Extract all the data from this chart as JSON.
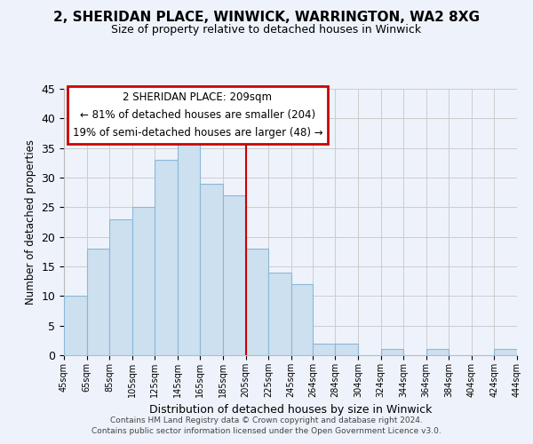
{
  "title": "2, SHERIDAN PLACE, WINWICK, WARRINGTON, WA2 8XG",
  "subtitle": "Size of property relative to detached houses in Winwick",
  "xlabel": "Distribution of detached houses by size in Winwick",
  "ylabel": "Number of detached properties",
  "bar_color": "#cce0f0",
  "bar_edge_color": "#8ab8d8",
  "grid_color": "#cccccc",
  "vline_color": "#cc0000",
  "vline_x": 205,
  "bin_edges": [
    45,
    65,
    85,
    105,
    125,
    145,
    165,
    185,
    205,
    225,
    245,
    264,
    284,
    304,
    324,
    344,
    364,
    384,
    404,
    424,
    444
  ],
  "bin_heights": [
    10,
    18,
    23,
    25,
    33,
    37,
    29,
    27,
    18,
    14,
    12,
    2,
    2,
    0,
    1,
    0,
    1,
    0,
    0,
    1
  ],
  "ylim": [
    0,
    45
  ],
  "yticks": [
    0,
    5,
    10,
    15,
    20,
    25,
    30,
    35,
    40,
    45
  ],
  "annotation_title": "2 SHERIDAN PLACE: 209sqm",
  "annotation_line1": "← 81% of detached houses are smaller (204)",
  "annotation_line2": "19% of semi-detached houses are larger (48) →",
  "annotation_box_color": "#ffffff",
  "annotation_box_edge_color": "#cc0000",
  "footnote1": "Contains HM Land Registry data © Crown copyright and database right 2024.",
  "footnote2": "Contains public sector information licensed under the Open Government Licence v3.0.",
  "bg_color": "#eef3fb",
  "tick_labels": [
    "45sqm",
    "65sqm",
    "85sqm",
    "105sqm",
    "125sqm",
    "145sqm",
    "165sqm",
    "185sqm",
    "205sqm",
    "225sqm",
    "245sqm",
    "264sqm",
    "284sqm",
    "304sqm",
    "324sqm",
    "344sqm",
    "364sqm",
    "384sqm",
    "404sqm",
    "424sqm",
    "444sqm"
  ]
}
